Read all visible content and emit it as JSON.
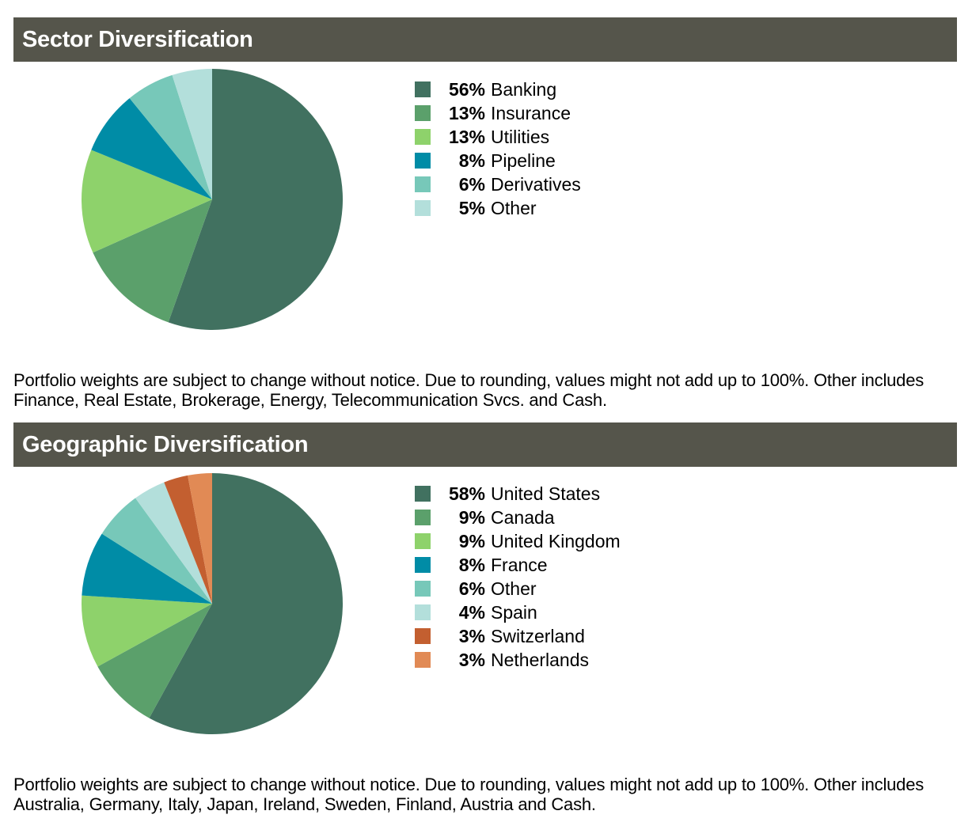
{
  "sections": [
    {
      "title": "Sector Diversification",
      "footnote": "Portfolio weights are subject to change without notice. Due to rounding, values might not add up to 100%. Other includes Finance, Real Estate, Brokerage, Energy, Telecommunication Svcs. and Cash.",
      "legend": [
        {
          "pct": "56%",
          "label": "Banking"
        },
        {
          "pct": "13%",
          "label": "Insurance"
        },
        {
          "pct": "13%",
          "label": "Utilities"
        },
        {
          "pct": "8%",
          "label": "Pipeline"
        },
        {
          "pct": "6%",
          "label": "Derivatives"
        },
        {
          "pct": "5%",
          "label": "Other"
        }
      ]
    },
    {
      "title": "Geographic Diversification",
      "footnote": "Portfolio weights are subject to change without notice. Due to rounding, values might not add up to 100%. Other includes Australia, Germany, Italy, Japan, Ireland, Sweden, Finland, Austria and Cash.",
      "legend": [
        {
          "pct": "58%",
          "label": "United States"
        },
        {
          "pct": "9%",
          "label": "Canada"
        },
        {
          "pct": "9%",
          "label": "United Kingdom"
        },
        {
          "pct": "8%",
          "label": "France"
        },
        {
          "pct": "6%",
          "label": "Other"
        },
        {
          "pct": "4%",
          "label": "Spain"
        },
        {
          "pct": "3%",
          "label": "Switzerland"
        },
        {
          "pct": "3%",
          "label": "Netherlands"
        }
      ]
    }
  ],
  "chart_data": [
    {
      "type": "pie",
      "title": "Sector Diversification",
      "categories": [
        "Banking",
        "Insurance",
        "Utilities",
        "Pipeline",
        "Derivatives",
        "Other"
      ],
      "values": [
        56,
        13,
        13,
        8,
        6,
        5
      ],
      "colors": [
        "#417160",
        "#5ba06b",
        "#8ed26b",
        "#008ca6",
        "#77c8b9",
        "#b3dfdb"
      ],
      "legend_position": "right"
    },
    {
      "type": "pie",
      "title": "Geographic Diversification",
      "categories": [
        "United States",
        "Canada",
        "United Kingdom",
        "France",
        "Other",
        "Spain",
        "Switzerland",
        "Netherlands"
      ],
      "values": [
        58,
        9,
        9,
        8,
        6,
        4,
        3,
        3
      ],
      "colors": [
        "#417160",
        "#5ba06b",
        "#8ed26b",
        "#008ca6",
        "#77c8b9",
        "#b3dfdb",
        "#c35f30",
        "#e18a55"
      ],
      "legend_position": "right"
    }
  ]
}
